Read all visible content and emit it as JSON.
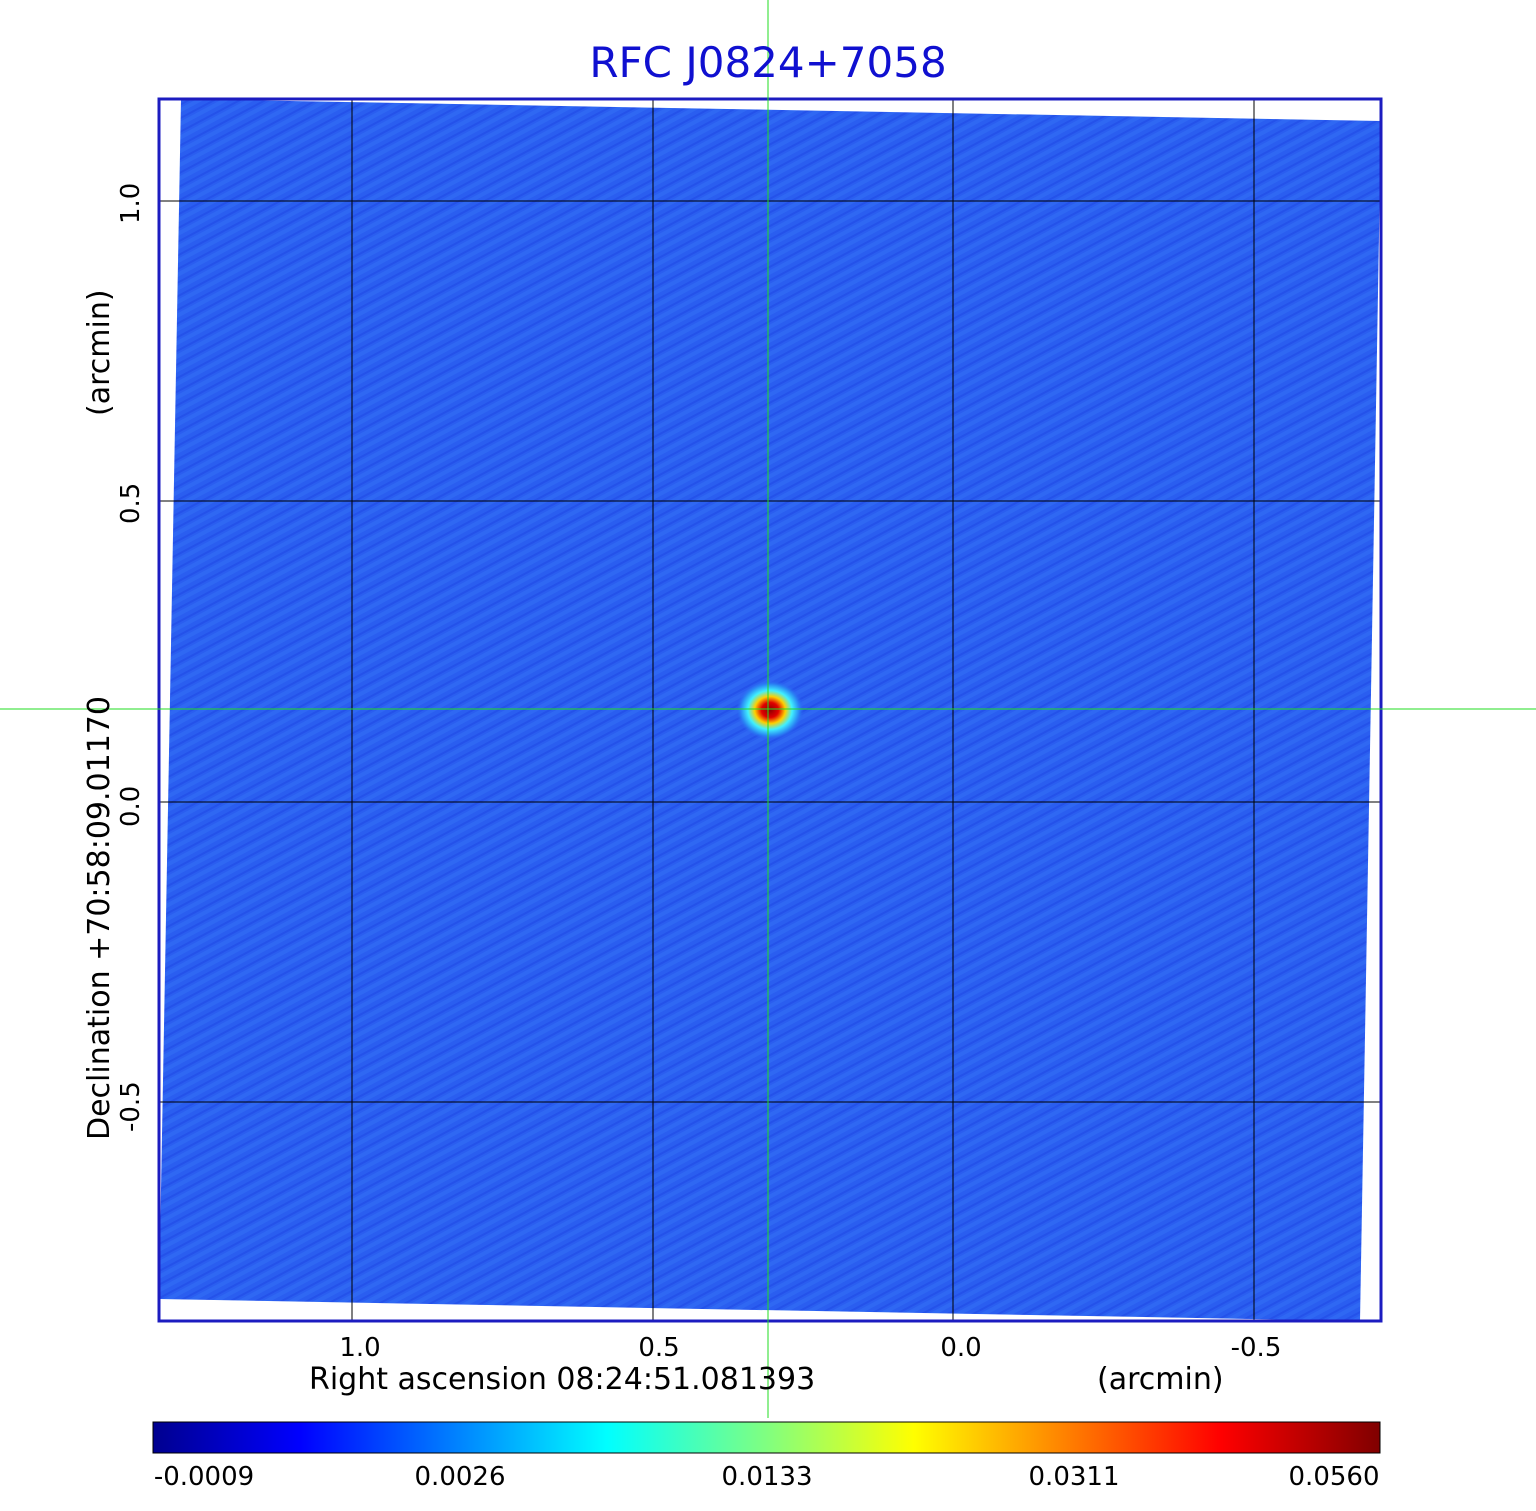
{
  "title": "RFC J0824+7058",
  "axes": {
    "x_label": "Right ascension  08:24:51.081393",
    "x_unit": "(arcmin)",
    "y_label": "Declination  +70:58:09.01170",
    "y_unit": "(arcmin)",
    "x_ticks": [
      "1.0",
      "0.5",
      "0.0",
      "-0.5"
    ],
    "y_ticks": [
      "1.0",
      "0.5",
      "0.0",
      "-0.5"
    ]
  },
  "colorbar": {
    "ticks": [
      "-0.0009",
      "0.0026",
      "0.0133",
      "0.0311",
      "0.0560"
    ],
    "colormap": "jet"
  },
  "colors": {
    "title": "#1010d0",
    "frame": "#1c1cc0",
    "crosshair": "#22dd22",
    "grid": "#000000",
    "background_field": "#2a5ef0"
  },
  "image": {
    "type": "radio map",
    "peak_value": 0.056
  }
}
